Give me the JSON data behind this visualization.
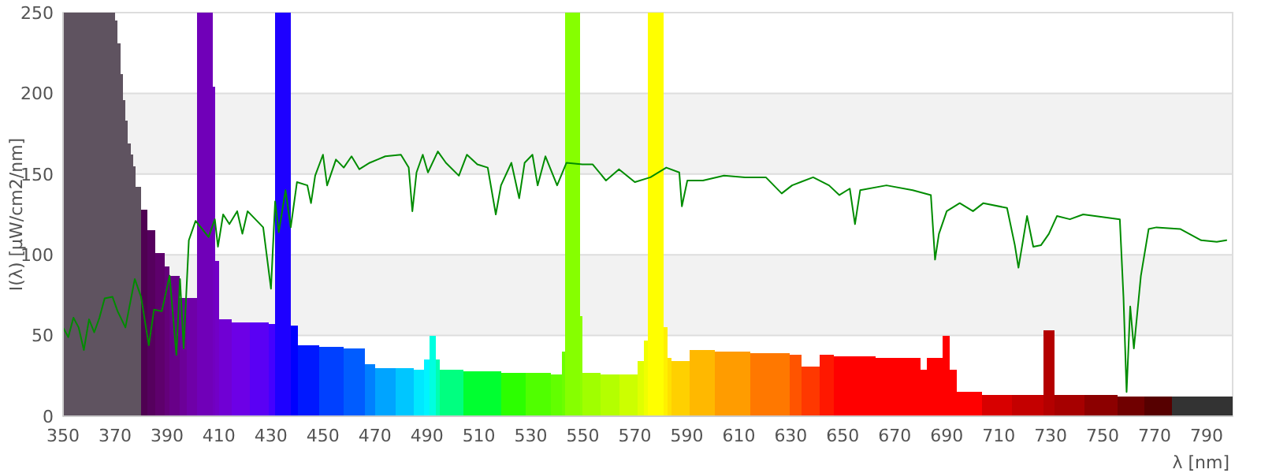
{
  "chart_data": {
    "type": "histogram",
    "xlabel": "λ [nm]",
    "ylabel": "I(λ)  [µW/cm2/nm]",
    "xlim": [
      350,
      800
    ],
    "ylim": [
      0,
      250
    ],
    "xticks": [
      350,
      370,
      390,
      410,
      430,
      450,
      470,
      490,
      510,
      530,
      550,
      570,
      590,
      610,
      630,
      650,
      670,
      690,
      710,
      730,
      750,
      770,
      790
    ],
    "yticks": [
      0,
      50,
      100,
      150,
      200,
      250
    ],
    "grid": "y",
    "bins": [
      350,
      370,
      371,
      372,
      373,
      374,
      375,
      376,
      377,
      378,
      379,
      380,
      382.4,
      385.6,
      389,
      391,
      395,
      397.6,
      401.6,
      407.6,
      408.6,
      410,
      415,
      422,
      429,
      431.6,
      437.6,
      440.4,
      448.4,
      458,
      466,
      470,
      478,
      485,
      489,
      491,
      493.4,
      495,
      504,
      518.5,
      528,
      537.7,
      542,
      543.3,
      548.8,
      549.8,
      556.8,
      564,
      571,
      573.5,
      575,
      581,
      582.5,
      584,
      591,
      600.8,
      614.4,
      629.5,
      634,
      641,
      646.7,
      662.7,
      680,
      682.3,
      688.4,
      691,
      694,
      703.5,
      715,
      727.3,
      731.4,
      743,
      755.6,
      766,
      776.8,
      800
    ],
    "values": [
      250,
      245,
      231,
      212,
      196,
      183,
      169,
      162,
      155,
      142,
      142,
      128,
      115,
      101,
      93,
      87,
      73,
      73,
      250,
      204,
      96,
      60,
      58,
      58,
      57,
      250,
      56,
      44,
      43,
      42,
      32,
      30,
      30,
      29,
      35,
      50,
      35,
      29,
      28,
      27,
      27,
      26,
      40,
      250,
      62,
      27,
      26,
      26,
      34,
      47,
      250,
      55,
      36,
      34,
      41,
      40,
      39,
      38,
      31,
      38,
      37,
      36,
      29,
      36,
      50,
      29,
      15,
      13,
      13,
      53,
      13,
      13,
      12,
      12,
      12
    ],
    "colors": [
      "#5f5360",
      "#5f5360",
      "#5f5360",
      "#5f5360",
      "#5f5360",
      "#5f5360",
      "#5f5360",
      "#5f5360",
      "#5f5360",
      "#5f5360",
      "#5f5360",
      "#4f0052",
      "#56005e",
      "#5e006c",
      "#64007a",
      "#680088",
      "#6c0098",
      "#6f00a8",
      "#7000b8",
      "#7100c0",
      "#7200c6",
      "#7000d4",
      "#6d00e6",
      "#5a00f4",
      "#4400ff",
      "#1e00ff",
      "#0000ff",
      "#0018ff",
      "#0040ff",
      "#005cff",
      "#0080ff",
      "#00a4ff",
      "#00c6ff",
      "#00e8ff",
      "#00f4ff",
      "#00ffe0",
      "#00ffb0",
      "#00ff80",
      "#00ff30",
      "#2cff00",
      "#50ff00",
      "#62ff00",
      "#6cff00",
      "#86ff00",
      "#8cff00",
      "#a0ff00",
      "#b4ff00",
      "#ccff00",
      "#e0ff00",
      "#f0ff00",
      "#ffff00",
      "#fff000",
      "#ffe000",
      "#ffd000",
      "#ffb800",
      "#ff9c00",
      "#ff7800",
      "#ff5400",
      "#ff3800",
      "#ff1800",
      "#ff0000",
      "#ff0000",
      "#ff0000",
      "#ff0000",
      "#ff0000",
      "#ff0000",
      "#ff0000",
      "#d80000",
      "#c40000",
      "#b40000",
      "#a60000",
      "#8c0000",
      "#700000",
      "#560000",
      "#333333"
    ],
    "series": [
      {
        "type": "line",
        "color": "#008c00",
        "x": [
          350,
          352,
          354,
          356,
          358,
          360,
          362,
          364,
          366,
          369,
          371,
          374,
          377.6,
          380,
          383,
          385,
          388,
          391,
          393.6,
          395,
          396.4,
          398.4,
          401,
          406,
          408.4,
          409.6,
          411.6,
          414,
          417,
          419,
          421,
          424,
          427,
          430,
          431.6,
          433,
          435.6,
          437.6,
          440,
          444,
          445.4,
          447,
          450,
          451.6,
          455,
          458,
          461,
          464,
          468,
          471,
          474,
          480,
          483,
          484.4,
          486,
          488.4,
          490.4,
          494.2,
          497.3,
          502.3,
          505.4,
          509.4,
          513.4,
          516.5,
          518.5,
          522.5,
          525.5,
          527.6,
          530.6,
          532.6,
          535.6,
          540.1,
          543.7,
          549.8,
          553.8,
          558.9,
          563.9,
          570,
          576,
          582.1,
          587.1,
          588.1,
          590.2,
          596.2,
          604.3,
          612.4,
          620.4,
          626.5,
          630.5,
          638.6,
          644.7,
          648.7,
          652.7,
          654.7,
          656.7,
          666.8,
          676.9,
          683.9,
          685.5,
          687,
          690,
          695,
          700.1,
          704.1,
          713.2,
          716.2,
          717.6,
          720.9,
          723.3,
          726.3,
          729.3,
          732.4,
          737.4,
          742.5,
          756.6,
          758,
          759.2,
          760.6,
          762,
          764.7,
          767.7,
          770.7,
          779.8,
          787.9,
          793.9,
          797.6
        ],
        "values": [
          55,
          49,
          61,
          55,
          41,
          60,
          52,
          61,
          73,
          74,
          65,
          55,
          85,
          74,
          44,
          66,
          65,
          87,
          38,
          85,
          42,
          109,
          121,
          111,
          122,
          105,
          125,
          119,
          127,
          113,
          127,
          122,
          117,
          79,
          133,
          114,
          140,
          117,
          145,
          143,
          132,
          149,
          162,
          143,
          159,
          154,
          161,
          153,
          157,
          159,
          161,
          162,
          154,
          127,
          151,
          162,
          151,
          164,
          157,
          149,
          162,
          156,
          154,
          125,
          143,
          157,
          135,
          157,
          162,
          143,
          161,
          143,
          157,
          156,
          156,
          146,
          153,
          145,
          148,
          154,
          151,
          130,
          146,
          146,
          149,
          148,
          148,
          138,
          143,
          148,
          143,
          137,
          141,
          119,
          140,
          143,
          140,
          137,
          97,
          113,
          127,
          132,
          127,
          132,
          129,
          106,
          92,
          124,
          105,
          106,
          113,
          124,
          122,
          125,
          122,
          74,
          15,
          68,
          42,
          87,
          116,
          117,
          116,
          109,
          108,
          109
        ]
      }
    ]
  }
}
